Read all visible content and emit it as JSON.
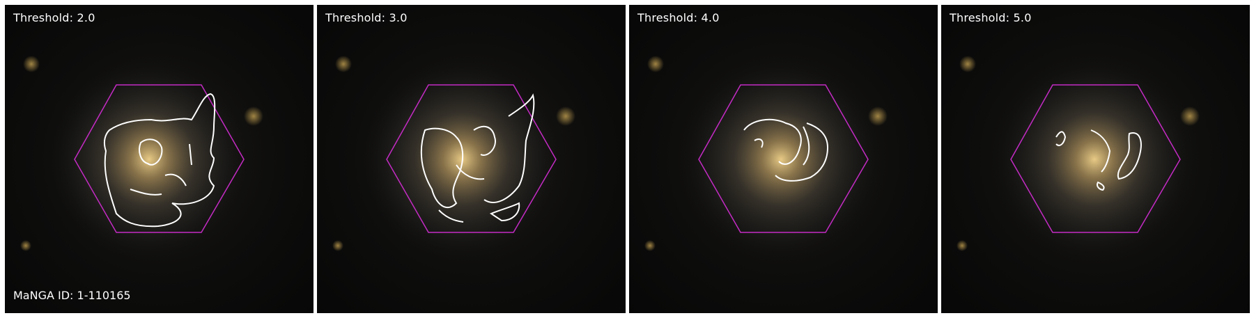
{
  "panels": [
    {
      "label": "Threshold: 2.0",
      "threshold": 2.0
    },
    {
      "label": "Threshold: 3.0",
      "threshold": 3.0
    },
    {
      "label": "Threshold: 4.0",
      "threshold": 4.0
    },
    {
      "label": "Threshold: 5.0",
      "threshold": 5.0
    }
  ],
  "galaxy": {
    "manga_id_label": "MaNGA ID: 1-110165"
  },
  "colors": {
    "hexagon": "#c42bc4",
    "contour": "#ffffff",
    "galaxy_core": "#f3d48c",
    "background": "#0a0a0a"
  }
}
